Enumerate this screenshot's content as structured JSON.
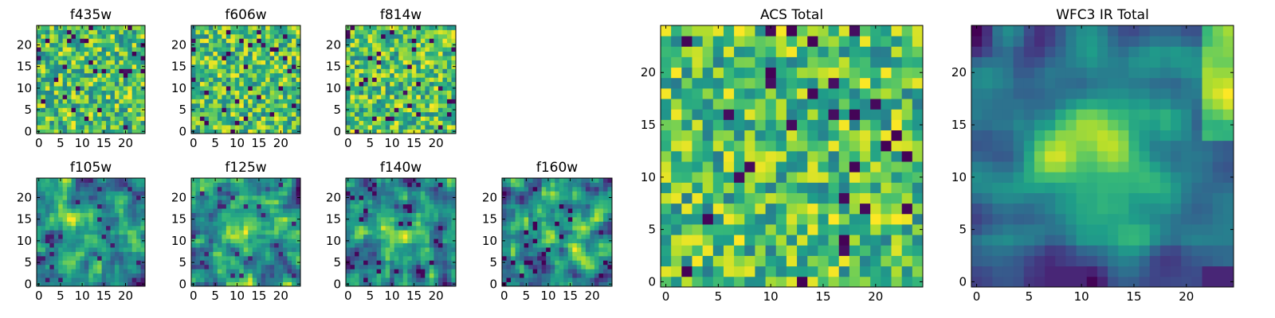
{
  "chart_data": [
    {
      "type": "heatmap",
      "title": "f435w",
      "grid_size": 25,
      "xlim": [
        0,
        24
      ],
      "ylim": [
        0,
        24
      ],
      "xticks": [
        "0",
        "5",
        "10",
        "15",
        "20"
      ],
      "yticks": [
        "0",
        "5",
        "10",
        "15",
        "20"
      ],
      "colormap": "viridis",
      "pattern": "noise",
      "seed": 11
    },
    {
      "type": "heatmap",
      "title": "f606w",
      "grid_size": 25,
      "xlim": [
        0,
        24
      ],
      "ylim": [
        0,
        24
      ],
      "xticks": [
        "0",
        "5",
        "10",
        "15",
        "20"
      ],
      "yticks": [
        "0",
        "5",
        "10",
        "15",
        "20"
      ],
      "colormap": "viridis",
      "pattern": "noise",
      "seed": 23
    },
    {
      "type": "heatmap",
      "title": "f814w",
      "grid_size": 25,
      "xlim": [
        0,
        24
      ],
      "ylim": [
        0,
        24
      ],
      "xticks": [
        "0",
        "5",
        "10",
        "15",
        "20"
      ],
      "yticks": [
        "0",
        "5",
        "10",
        "15",
        "20"
      ],
      "colormap": "viridis",
      "pattern": "noise",
      "seed": 37
    },
    {
      "type": "heatmap",
      "title": "f105w",
      "grid_size": 25,
      "xlim": [
        0,
        24
      ],
      "ylim": [
        0,
        24
      ],
      "xticks": [
        "0",
        "5",
        "10",
        "15",
        "20"
      ],
      "yticks": [
        "0",
        "5",
        "10",
        "15",
        "20"
      ],
      "colormap": "viridis",
      "pattern": "blob",
      "seed": 41
    },
    {
      "type": "heatmap",
      "title": "f125w",
      "grid_size": 25,
      "xlim": [
        0,
        24
      ],
      "ylim": [
        0,
        24
      ],
      "xticks": [
        "0",
        "5",
        "10",
        "15",
        "20"
      ],
      "yticks": [
        "0",
        "5",
        "10",
        "15",
        "20"
      ],
      "colormap": "viridis",
      "pattern": "blob",
      "seed": 53
    },
    {
      "type": "heatmap",
      "title": "f140w",
      "grid_size": 25,
      "xlim": [
        0,
        24
      ],
      "ylim": [
        0,
        24
      ],
      "xticks": [
        "0",
        "5",
        "10",
        "15",
        "20"
      ],
      "yticks": [
        "0",
        "5",
        "10",
        "15",
        "20"
      ],
      "colormap": "viridis",
      "pattern": "blob",
      "seed": 67
    },
    {
      "type": "heatmap",
      "title": "f160w",
      "grid_size": 25,
      "xlim": [
        0,
        24
      ],
      "ylim": [
        0,
        24
      ],
      "xticks": [
        "0",
        "5",
        "10",
        "15",
        "20"
      ],
      "yticks": [
        "0",
        "5",
        "10",
        "15",
        "20"
      ],
      "colormap": "viridis",
      "pattern": "blob",
      "seed": 79
    },
    {
      "type": "heatmap",
      "title": "ACS Total",
      "grid_size": 25,
      "xlim": [
        0,
        24
      ],
      "ylim": [
        0,
        24
      ],
      "xticks": [
        "0",
        "5",
        "10",
        "15",
        "20"
      ],
      "yticks": [
        "0",
        "5",
        "10",
        "15",
        "20"
      ],
      "colormap": "viridis",
      "pattern": "noise",
      "seed": 97
    },
    {
      "type": "heatmap",
      "title": "WFC3 IR Total",
      "grid_size": 25,
      "xlim": [
        0,
        24
      ],
      "ylim": [
        0,
        24
      ],
      "xticks": [
        "0",
        "5",
        "10",
        "15",
        "20"
      ],
      "yticks": [
        "0",
        "5",
        "10",
        "15",
        "20"
      ],
      "colormap": "viridis",
      "pattern": "smooth",
      "seed": 103
    }
  ]
}
